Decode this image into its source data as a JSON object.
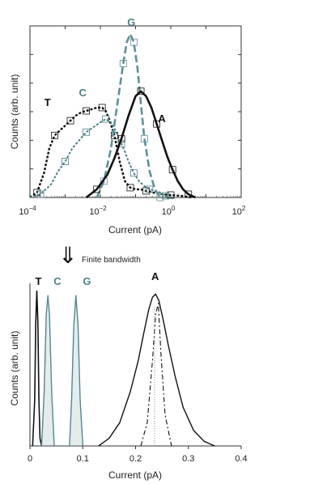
{
  "colors": {
    "black": "#111111",
    "teal": "#4d8088",
    "teal_light": "#8fb6b8"
  },
  "annotation": {
    "arrow_glyph": "⇓",
    "text": "Finite bandwidth"
  },
  "chart_data": [
    {
      "type": "line",
      "xscale": "log",
      "xlabel": "Current (pA)",
      "ylabel": "Counts (arb. unit)",
      "xlim_exponents": [
        -4,
        2
      ],
      "ylim": [
        0,
        1.05
      ],
      "xtick_labels": [
        {
          "base": "10",
          "exp": "−4",
          "e": -4
        },
        {
          "base": "10",
          "exp": "−2",
          "e": -2
        },
        {
          "base": "10",
          "exp": "0",
          "e": 0
        },
        {
          "base": "10",
          "exp": "2",
          "e": 2
        }
      ],
      "series": [
        {
          "name": "T",
          "color": "#111111",
          "dash": "3,2",
          "width": 2.4,
          "x_log10": [
            -4.0,
            -3.8,
            -3.6,
            -3.45,
            -3.3,
            -3.15,
            -3.0,
            -2.85,
            -2.7,
            -2.55,
            -2.4,
            -2.25,
            -2.1,
            -1.95,
            -1.85,
            -1.75,
            -1.6,
            -1.45,
            -1.3,
            -1.15,
            -1.0,
            -0.85,
            -0.7,
            -0.5,
            -0.25,
            0.0,
            0.3,
            0.6
          ],
          "y": [
            0.0,
            0.03,
            0.15,
            0.3,
            0.38,
            0.41,
            0.44,
            0.47,
            0.5,
            0.52,
            0.53,
            0.54,
            0.55,
            0.55,
            0.53,
            0.48,
            0.38,
            0.22,
            0.1,
            0.06,
            0.05,
            0.05,
            0.04,
            0.03,
            0.02,
            0.015,
            0.01,
            0.0
          ]
        },
        {
          "name": "C",
          "color": "#4d8088",
          "dash": "3,2",
          "width": 2.0,
          "x_log10": [
            -4.0,
            -3.7,
            -3.4,
            -3.2,
            -3.0,
            -2.8,
            -2.6,
            -2.4,
            -2.2,
            -2.0,
            -1.85,
            -1.7,
            -1.55,
            -1.4,
            -1.3,
            -1.2,
            -1.05,
            -0.9,
            -0.75,
            -0.6,
            -0.45,
            -0.3,
            -0.15,
            0.0
          ],
          "y": [
            0.0,
            0.02,
            0.08,
            0.16,
            0.22,
            0.3,
            0.35,
            0.4,
            0.43,
            0.46,
            0.48,
            0.46,
            0.4,
            0.33,
            0.28,
            0.22,
            0.15,
            0.1,
            0.07,
            0.05,
            0.04,
            0.03,
            0.01,
            0.0
          ]
        },
        {
          "name": "G",
          "color": "#5e9098",
          "dash": "9,4",
          "width": 2.6,
          "x_log10": [
            -2.1,
            -1.9,
            -1.7,
            -1.5,
            -1.35,
            -1.25,
            -1.15,
            -1.05,
            -0.95,
            -0.85,
            -0.75,
            -0.6,
            -0.45,
            -0.3
          ],
          "y": [
            0.0,
            0.1,
            0.3,
            0.6,
            0.82,
            0.95,
            1.0,
            0.95,
            0.8,
            0.58,
            0.36,
            0.16,
            0.05,
            0.0
          ]
        },
        {
          "name": "A",
          "color": "#111111",
          "dash": "",
          "width": 2.6,
          "x_log10": [
            -2.4,
            -2.1,
            -1.8,
            -1.6,
            -1.4,
            -1.2,
            -1.0,
            -0.85,
            -0.7,
            -0.55,
            -0.4,
            -0.25,
            -0.1,
            0.05,
            0.2,
            0.35,
            0.5,
            0.7
          ],
          "y": [
            0.0,
            0.05,
            0.14,
            0.24,
            0.36,
            0.5,
            0.62,
            0.65,
            0.62,
            0.55,
            0.45,
            0.35,
            0.25,
            0.17,
            0.1,
            0.05,
            0.02,
            0.0
          ]
        }
      ],
      "series_labels": [
        {
          "name": "T",
          "label": "T",
          "color": "#111111",
          "x_log10": -3.5,
          "y": 0.56
        },
        {
          "name": "C",
          "label": "C",
          "color": "#4d8088",
          "x_log10": -2.5,
          "y": 0.62
        },
        {
          "name": "G",
          "label": "G",
          "color": "#4d8088",
          "x_log10": -1.12,
          "y": 1.05
        },
        {
          "name": "A",
          "label": "A",
          "color": "#111111",
          "x_log10": -0.25,
          "y": 0.46
        }
      ]
    },
    {
      "type": "line",
      "xlabel": "Current (pA)",
      "ylabel": "Counts (arb. unit)",
      "xlim": [
        0,
        0.4
      ],
      "ylim": [
        0,
        1.05
      ],
      "xtick_labels": [
        {
          "value": 0,
          "label": "0"
        },
        {
          "value": 0.1,
          "label": "0.1"
        },
        {
          "value": 0.2,
          "label": "0.2"
        },
        {
          "value": 0.3,
          "label": "0.3"
        },
        {
          "value": 0.4,
          "label": "0.4"
        }
      ],
      "series": [
        {
          "name": "T",
          "color": "#111111",
          "dash": "",
          "width": 1.6,
          "x": [
            0.005,
            0.009,
            0.011,
            0.013,
            0.015,
            0.017,
            0.019,
            0.022
          ],
          "y": [
            0.0,
            0.3,
            0.8,
            1.0,
            0.8,
            0.3,
            0.05,
            0.0
          ]
        },
        {
          "name": "C",
          "color": "#4d8088",
          "dash": "",
          "width": 1.4,
          "x": [
            0.022,
            0.027,
            0.031,
            0.034,
            0.037,
            0.041,
            0.046
          ],
          "y": [
            0.0,
            0.35,
            0.85,
            0.97,
            0.85,
            0.35,
            0.0
          ]
        },
        {
          "name": "G",
          "color": "#4d8088",
          "dash": "",
          "width": 1.4,
          "x": [
            0.075,
            0.079,
            0.083,
            0.087,
            0.091,
            0.095,
            0.1
          ],
          "y": [
            0.0,
            0.3,
            0.78,
            0.97,
            0.78,
            0.3,
            0.0
          ]
        },
        {
          "name": "A",
          "color": "#111111",
          "dash": "",
          "width": 1.4,
          "x": [
            0.13,
            0.15,
            0.17,
            0.19,
            0.205,
            0.215,
            0.225,
            0.232,
            0.238,
            0.244,
            0.252,
            0.262,
            0.275,
            0.29,
            0.31,
            0.33,
            0.35
          ],
          "y": [
            0.0,
            0.05,
            0.15,
            0.35,
            0.55,
            0.72,
            0.88,
            0.96,
            0.98,
            0.94,
            0.82,
            0.65,
            0.45,
            0.25,
            0.1,
            0.03,
            0.0
          ]
        },
        {
          "name": "A-dashdot",
          "color": "#111111",
          "dash": "6,3,2,3",
          "width": 1.1,
          "x": [
            0.21,
            0.222,
            0.232,
            0.238,
            0.243,
            0.248,
            0.256,
            0.268
          ],
          "y": [
            0.0,
            0.15,
            0.55,
            0.85,
            0.92,
            0.6,
            0.2,
            0.0
          ]
        },
        {
          "name": "A-dotted",
          "color": "#888888",
          "dash": "1,2",
          "width": 1.0,
          "x": [
            0.236,
            0.236
          ],
          "y": [
            0.0,
            0.9
          ]
        }
      ],
      "series_labels": [
        {
          "name": "T",
          "label": "T",
          "color": "#111111",
          "x": 0.016,
          "y": 1.04
        },
        {
          "name": "C",
          "label": "C",
          "color": "#4d8088",
          "x": 0.052,
          "y": 1.04
        },
        {
          "name": "G",
          "label": "G",
          "color": "#4d8088",
          "x": 0.108,
          "y": 1.04
        },
        {
          "name": "A",
          "label": "A",
          "color": "#111111",
          "x": 0.237,
          "y": 1.07
        }
      ]
    }
  ]
}
